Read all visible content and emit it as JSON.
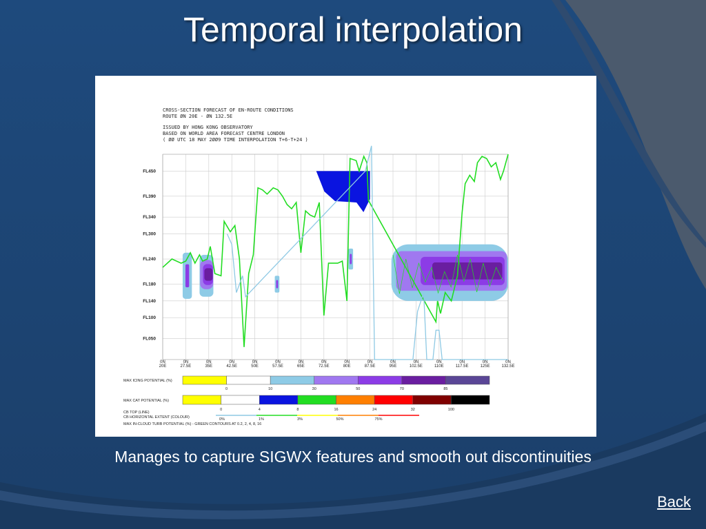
{
  "slide": {
    "title": "Temporal interpolation",
    "caption": "Manages to capture SIGWX features and smooth out discontinuities",
    "back_label": "Back"
  },
  "colors": {
    "background": "#1f4a7a",
    "accent_gray": "#4b5a6d",
    "turb_line": "#22dd22",
    "cb_top_line": "#8ec9e4",
    "cb_extent": "#0a14e0"
  },
  "chart_data": {
    "type": "cross-section",
    "header_lines": [
      "CROSS-SECTION FORECAST OF EN-ROUTE CONDITIONS",
      "ROUTE ØN 20E - ØN 132.5E",
      "ISSUED BY HONG KONG OBSERVATORY",
      "BASED ON WORLD AREA FORECAST CENTRE LONDON",
      "( ØØ UTC 18 MAY 2ØØ9 TIME INTERPOLATION T+6-T+24 )"
    ],
    "y_levels": [
      "FL450",
      "FL390",
      "FL340",
      "FL300",
      "FL240",
      "FL180",
      "FL140",
      "FL100",
      "FL050"
    ],
    "y_level_values": [
      450,
      390,
      340,
      300,
      240,
      180,
      140,
      100,
      50
    ],
    "x_ticks": [
      {
        "lat": "0N",
        "lon": "20E"
      },
      {
        "lat": "0N",
        "lon": "27.5E"
      },
      {
        "lat": "0N",
        "lon": "35E"
      },
      {
        "lat": "0N",
        "lon": "42.5E"
      },
      {
        "lat": "0N",
        "lon": "50E"
      },
      {
        "lat": "0N",
        "lon": "57.5E"
      },
      {
        "lat": "0N",
        "lon": "65E"
      },
      {
        "lat": "0N",
        "lon": "72.5E"
      },
      {
        "lat": "0N",
        "lon": "80E"
      },
      {
        "lat": "0N",
        "lon": "87.5E"
      },
      {
        "lat": "0N",
        "lon": "95E"
      },
      {
        "lat": "0N",
        "lon": "102.5E"
      },
      {
        "lat": "0N",
        "lon": "110E"
      },
      {
        "lat": "0N",
        "lon": "117.5E"
      },
      {
        "lat": "0N",
        "lon": "125E"
      },
      {
        "lat": "0N",
        "lon": "132.5E"
      }
    ],
    "x_tick_values": [
      20,
      27.5,
      35,
      42.5,
      50,
      57.5,
      65,
      72.5,
      80,
      87.5,
      95,
      102.5,
      110,
      117.5,
      125,
      132.5
    ],
    "xlim": [
      20,
      132.5
    ],
    "ylim": [
      0,
      490
    ],
    "grid": true,
    "series": [
      {
        "name": "MAX IN-CLOUD TURB POTENTIAL",
        "color": "#22dd22",
        "points": [
          [
            20,
            220
          ],
          [
            23,
            240
          ],
          [
            26,
            230
          ],
          [
            27.5,
            235
          ],
          [
            29,
            255
          ],
          [
            30.5,
            230
          ],
          [
            32,
            250
          ],
          [
            33,
            235
          ],
          [
            34.5,
            240
          ],
          [
            35.5,
            270
          ],
          [
            37,
            205
          ],
          [
            39,
            200
          ],
          [
            40,
            330
          ],
          [
            42,
            305
          ],
          [
            43.5,
            320
          ],
          [
            45,
            240
          ],
          [
            46.5,
            30
          ],
          [
            48,
            205
          ],
          [
            49.5,
            250
          ],
          [
            51,
            410
          ],
          [
            52.5,
            405
          ],
          [
            54,
            395
          ],
          [
            56,
            410
          ],
          [
            57.5,
            405
          ],
          [
            59,
            390
          ],
          [
            60.5,
            370
          ],
          [
            62,
            360
          ],
          [
            63.5,
            375
          ],
          [
            65,
            255
          ],
          [
            66.5,
            355
          ],
          [
            68,
            345
          ],
          [
            69.5,
            340
          ],
          [
            71,
            375
          ],
          [
            72.5,
            105
          ],
          [
            74,
            230
          ],
          [
            75.5,
            230
          ],
          [
            77,
            230
          ],
          [
            78.5,
            235
          ],
          [
            80,
            140
          ],
          [
            81,
            480
          ],
          [
            83,
            475
          ],
          [
            84,
            450
          ],
          [
            85.5,
            485
          ],
          [
            86.5,
            470
          ],
          [
            87,
            380
          ],
          [
            109,
            90
          ],
          [
            109.5,
            140
          ],
          [
            110.5,
            110
          ],
          [
            112,
            160
          ],
          [
            114,
            140
          ],
          [
            116,
            200
          ],
          [
            117.5,
            350
          ],
          [
            118.5,
            420
          ],
          [
            120,
            440
          ],
          [
            121.5,
            425
          ],
          [
            122.5,
            470
          ],
          [
            124,
            485
          ],
          [
            125.5,
            480
          ],
          [
            127,
            460
          ],
          [
            128.5,
            470
          ],
          [
            130,
            430
          ],
          [
            131,
            450
          ],
          [
            132.5,
            490
          ]
        ]
      },
      {
        "name": "CB TOP",
        "color": "#8ec9e4",
        "points": [
          [
            41,
            300
          ],
          [
            42.5,
            275
          ],
          [
            44,
            160
          ],
          [
            46,
            200
          ],
          [
            47,
            150
          ],
          [
            86,
            450
          ],
          [
            88,
            510
          ],
          [
            89,
            0
          ],
          [
            101.5,
            0
          ],
          [
            103,
            115
          ],
          [
            105,
            160
          ],
          [
            106,
            0
          ],
          [
            108,
            0
          ],
          [
            109,
            70
          ],
          [
            110,
            70
          ],
          [
            111,
            0
          ],
          [
            132.5,
            0
          ]
        ]
      }
    ],
    "cb_extent_areas": [
      {
        "lon": [
          70,
          87.5
        ],
        "flight_level_top": 450,
        "flight_level_bottom": 375
      }
    ],
    "icing_areas": [
      {
        "lon": [
          26.5,
          29.5
        ],
        "flight_level": [
          145,
          255
        ]
      },
      {
        "lon": [
          32,
          36.5
        ],
        "flight_level": [
          150,
          250
        ]
      },
      {
        "lon": [
          56.5,
          58
        ],
        "flight_level": [
          160,
          200
        ]
      },
      {
        "lon": [
          80.5,
          82
        ],
        "flight_level": [
          215,
          265
        ]
      },
      {
        "lon": [
          94.5,
          132.5
        ],
        "flight_level": [
          140,
          275
        ]
      }
    ],
    "legend": {
      "icing": {
        "label": "MAX ICING POTENTIAL (%)",
        "ticks": [
          "0",
          "10",
          "30",
          "50",
          "70",
          "85"
        ],
        "colors": [
          "#ffff00",
          "#ffffff",
          "#8ecbe6",
          "#a078f0",
          "#8c3ce6",
          "#6a1ea0",
          "#5a4696"
        ]
      },
      "cat": {
        "label": "MAX CAT POTENTIAL (%)",
        "ticks": [
          "0",
          "4",
          "8",
          "16",
          "24",
          "32",
          "100"
        ],
        "colors": [
          "#ffff00",
          "#ffffff",
          "#0a14e0",
          "#22dd22",
          "#ff7f00",
          "#ff0000",
          "#7f0000",
          "#000000"
        ]
      },
      "cb_top_label": "CB TOP  (LINE)",
      "cb_extent_label": "CB HORIZONTAL EXTENT  (COLOUR)",
      "cb_extent_ticks": [
        "0%",
        "1%",
        "3%",
        "50%",
        "75%"
      ],
      "turb_label": "MAX IN-CLOUD TURB POTENTIAL (%) - GREEN CONTOURS AT 0.2, 2, 4, 8, 16"
    }
  }
}
